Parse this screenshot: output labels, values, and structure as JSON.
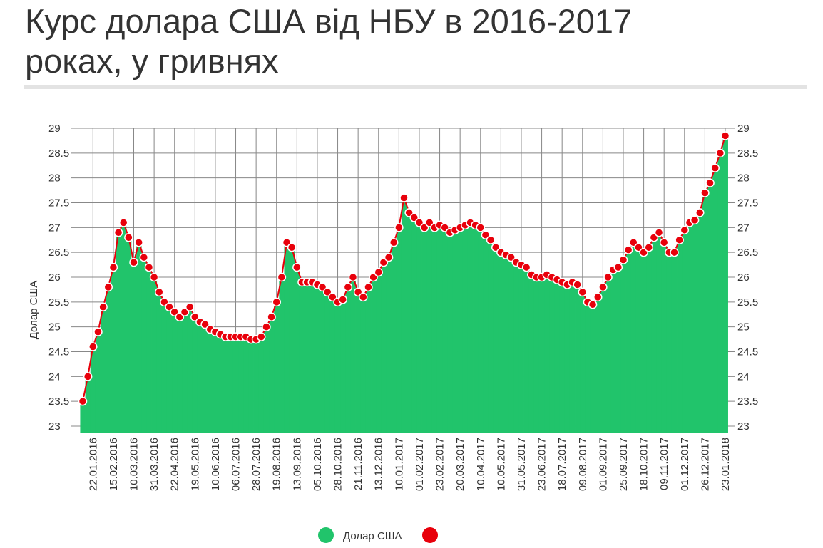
{
  "chart_data": {
    "type": "bar-line",
    "title": "Курс долара США від НБУ в 2016-2017 роках, у гривнях",
    "y_label": "Долар США",
    "categories": [
      null,
      null,
      "22.01.2016",
      null,
      null,
      null,
      "15.02.2016",
      null,
      null,
      null,
      "10.03.2016",
      null,
      null,
      null,
      "31.03.2016",
      null,
      null,
      null,
      "22.04.2016",
      null,
      null,
      null,
      "19.05.2016",
      null,
      null,
      null,
      "10.06.2016",
      null,
      null,
      null,
      "06.07.2016",
      null,
      null,
      null,
      "28.07.2016",
      null,
      null,
      null,
      "19.08.2016",
      null,
      null,
      null,
      "13.09.2016",
      null,
      null,
      null,
      "05.10.2016",
      null,
      null,
      null,
      "28.10.2016",
      null,
      null,
      null,
      "21.11.2016",
      null,
      null,
      null,
      "13.12.2016",
      null,
      null,
      null,
      "10.01.2017",
      null,
      null,
      null,
      "01.02.2017",
      null,
      null,
      null,
      "23.02.2017",
      null,
      null,
      null,
      "20.03.2017",
      null,
      null,
      null,
      "10.04.2017",
      null,
      null,
      null,
      "10.05.2017",
      null,
      null,
      null,
      "31.05.2017",
      null,
      null,
      null,
      "23.06.2017",
      null,
      null,
      null,
      "18.07.2017",
      null,
      null,
      null,
      "09.08.2017",
      null,
      null,
      null,
      "01.09.2017",
      null,
      null,
      null,
      "25.09.2017",
      null,
      null,
      null,
      "18.10.2017",
      null,
      null,
      null,
      "09.11.2017",
      null,
      null,
      null,
      "01.12.2017",
      null,
      null,
      null,
      "26.12.2017",
      null,
      null,
      null,
      "23.01.2018"
    ],
    "series": [
      {
        "name": "Долар США",
        "color": "#21c46b",
        "marker_color": "#e8000b",
        "values": [
          23.5,
          24.0,
          24.6,
          24.9,
          25.4,
          25.8,
          26.2,
          26.9,
          27.1,
          26.8,
          26.3,
          26.7,
          26.4,
          26.2,
          26.0,
          25.7,
          25.5,
          25.4,
          25.3,
          25.2,
          25.3,
          25.4,
          25.2,
          25.1,
          25.05,
          24.95,
          24.9,
          24.85,
          24.8,
          24.8,
          24.8,
          24.8,
          24.8,
          24.75,
          24.75,
          24.8,
          25.0,
          25.2,
          25.5,
          26.0,
          26.7,
          26.6,
          26.2,
          25.9,
          25.9,
          25.9,
          25.85,
          25.8,
          25.7,
          25.6,
          25.5,
          25.55,
          25.8,
          26.0,
          25.7,
          25.6,
          25.8,
          26.0,
          26.1,
          26.3,
          26.4,
          26.7,
          27.0,
          27.6,
          27.3,
          27.2,
          27.1,
          27.0,
          27.1,
          27.0,
          27.05,
          27.0,
          26.9,
          26.95,
          27.0,
          27.05,
          27.1,
          27.05,
          27.0,
          26.85,
          26.75,
          26.6,
          26.5,
          26.45,
          26.4,
          26.3,
          26.25,
          26.2,
          26.05,
          26.0,
          26.0,
          26.05,
          26.0,
          25.95,
          25.9,
          25.85,
          25.9,
          25.85,
          25.7,
          25.5,
          25.45,
          25.6,
          25.8,
          26.0,
          26.15,
          26.2,
          26.35,
          26.55,
          26.7,
          26.6,
          26.5,
          26.6,
          26.8,
          26.9,
          26.7,
          26.5,
          26.5,
          26.75,
          26.95,
          27.1,
          27.15,
          27.3,
          27.7,
          27.9,
          28.2,
          28.5,
          28.85
        ]
      }
    ],
    "ylim": [
      23,
      29
    ],
    "yticks": [
      23,
      23.5,
      24,
      24.5,
      25,
      25.5,
      26,
      26.5,
      27,
      27.5,
      28,
      28.5,
      29
    ],
    "y2lim": [
      23,
      29
    ],
    "y2ticks": [
      23,
      23.5,
      24,
      24.5,
      25,
      25.5,
      26,
      26.5,
      27,
      27.5,
      28,
      28.5,
      29
    ],
    "grid": true
  }
}
